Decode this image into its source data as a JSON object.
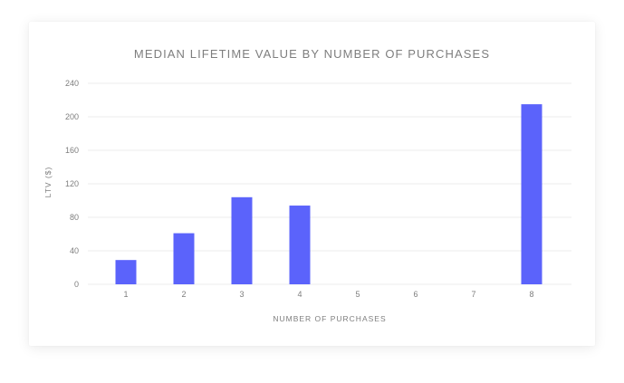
{
  "chart_data": {
    "type": "bar",
    "title": "MEDIAN LIFETIME VALUE BY NUMBER OF PURCHASES",
    "xlabel": "NUMBER OF PURCHASES",
    "ylabel": "LTV ($)",
    "categories": [
      "1",
      "2",
      "3",
      "4",
      "5",
      "6",
      "7",
      "8"
    ],
    "values": [
      29,
      61,
      104,
      94,
      0,
      0,
      0,
      215
    ],
    "ylim": [
      0,
      240
    ],
    "yticks": [
      0,
      40,
      80,
      120,
      160,
      200,
      240
    ],
    "grid": true,
    "bar_color": "#5b63fb",
    "grid_color": "#ececec",
    "text_color": "#7e7e7e"
  }
}
